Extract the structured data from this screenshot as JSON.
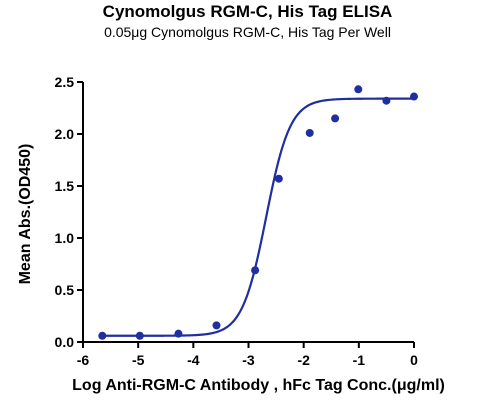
{
  "chart_data": {
    "type": "scatter",
    "title": "Cynomolgus RGM-C, His Tag ELISA",
    "subtitle": "0.05μg Cynomolgus RGM-C, His Tag Per Well",
    "xlabel": "Log Anti-RGM-C Antibody , hFc Tag Conc.(μg/ml)",
    "ylabel": "Mean Abs.(OD450)",
    "xlim": [
      -6,
      0
    ],
    "ylim": [
      0,
      2.5
    ],
    "xticks": [
      "-6",
      "-5",
      "-4",
      "-3",
      "-2",
      "-1",
      "0"
    ],
    "yticks": [
      "0.0",
      "0.5",
      "1.0",
      "1.5",
      "2.0",
      "2.5"
    ],
    "grid": false,
    "color": "#1f2fa0",
    "series": [
      {
        "x": [
          -5.65,
          -4.97,
          -4.27,
          -3.58,
          -2.88,
          -2.45,
          -1.89,
          -1.43,
          -1.01,
          -0.5,
          0.0
        ],
        "y": [
          0.06,
          0.06,
          0.08,
          0.16,
          0.69,
          1.57,
          2.01,
          2.15,
          2.43,
          2.32,
          2.36
        ]
      }
    ],
    "fit": {
      "type": "4PL",
      "bottom": 0.06,
      "top": 2.34,
      "log_ec50": -2.68,
      "hill": 2.0
    }
  }
}
